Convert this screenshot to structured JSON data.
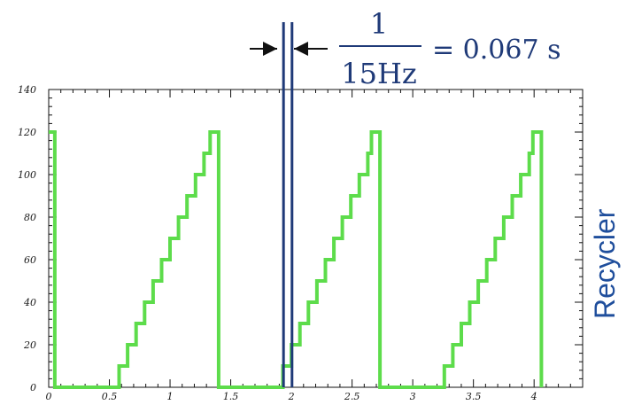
{
  "chart_data": {
    "type": "line",
    "step": true,
    "xlim": [
      0,
      4.4
    ],
    "ylim": [
      0,
      140
    ],
    "x_ticks": [
      "0",
      "0.5",
      "1",
      "1.5",
      "2",
      "2.5",
      "3",
      "3.5",
      "4"
    ],
    "x_tick_values": [
      0,
      0.5,
      1,
      1.5,
      2,
      2.5,
      3,
      3.5,
      4
    ],
    "y_ticks": [
      "0",
      "20",
      "40",
      "60",
      "80",
      "100",
      "120",
      "140"
    ],
    "y_tick_values": [
      0,
      20,
      40,
      60,
      80,
      100,
      120,
      140
    ],
    "series_color": "#5ddc4b",
    "series": [
      {
        "points": [
          [
            0.0,
            120
          ],
          [
            0.05,
            120
          ],
          [
            0.05,
            0
          ],
          [
            0.58,
            0
          ],
          [
            0.58,
            10
          ],
          [
            0.65,
            10
          ],
          [
            0.65,
            20
          ],
          [
            0.72,
            20
          ],
          [
            0.72,
            30
          ],
          [
            0.79,
            30
          ],
          [
            0.79,
            40
          ],
          [
            0.86,
            40
          ],
          [
            0.86,
            50
          ],
          [
            0.93,
            50
          ],
          [
            0.93,
            60
          ],
          [
            1.0,
            60
          ],
          [
            1.0,
            70
          ],
          [
            1.07,
            70
          ],
          [
            1.07,
            80
          ],
          [
            1.14,
            80
          ],
          [
            1.14,
            90
          ],
          [
            1.21,
            90
          ],
          [
            1.21,
            100
          ],
          [
            1.28,
            100
          ],
          [
            1.28,
            110
          ],
          [
            1.33,
            110
          ],
          [
            1.33,
            120
          ],
          [
            1.4,
            120
          ],
          [
            1.4,
            0
          ],
          [
            1.93,
            0
          ],
          [
            1.93,
            10
          ],
          [
            2.0,
            10
          ],
          [
            2.0,
            20
          ],
          [
            2.07,
            20
          ],
          [
            2.07,
            30
          ],
          [
            2.14,
            30
          ],
          [
            2.14,
            40
          ],
          [
            2.21,
            40
          ],
          [
            2.21,
            50
          ],
          [
            2.28,
            50
          ],
          [
            2.28,
            60
          ],
          [
            2.35,
            60
          ],
          [
            2.35,
            70
          ],
          [
            2.42,
            70
          ],
          [
            2.42,
            80
          ],
          [
            2.49,
            80
          ],
          [
            2.49,
            90
          ],
          [
            2.56,
            90
          ],
          [
            2.56,
            100
          ],
          [
            2.63,
            100
          ],
          [
            2.63,
            110
          ],
          [
            2.66,
            110
          ],
          [
            2.66,
            120
          ],
          [
            2.73,
            120
          ],
          [
            2.73,
            0
          ],
          [
            3.26,
            0
          ],
          [
            3.26,
            10
          ],
          [
            3.33,
            10
          ],
          [
            3.33,
            20
          ],
          [
            3.4,
            20
          ],
          [
            3.4,
            30
          ],
          [
            3.47,
            30
          ],
          [
            3.47,
            40
          ],
          [
            3.54,
            40
          ],
          [
            3.54,
            50
          ],
          [
            3.61,
            50
          ],
          [
            3.61,
            60
          ],
          [
            3.68,
            60
          ],
          [
            3.68,
            70
          ],
          [
            3.75,
            70
          ],
          [
            3.75,
            80
          ],
          [
            3.82,
            80
          ],
          [
            3.82,
            90
          ],
          [
            3.89,
            90
          ],
          [
            3.89,
            100
          ],
          [
            3.96,
            100
          ],
          [
            3.96,
            110
          ],
          [
            3.99,
            110
          ],
          [
            3.99,
            120
          ],
          [
            4.06,
            120
          ],
          [
            4.06,
            0
          ]
        ]
      }
    ],
    "marker_lines_x": [
      1.935,
      2.005
    ],
    "marker_color": "#1f3a78",
    "annotation": {
      "numerator": "1",
      "denominator": "15Hz",
      "result": "= 0.067 s"
    },
    "side_label": "Recycler",
    "side_label_color": "#1f4e9c"
  }
}
